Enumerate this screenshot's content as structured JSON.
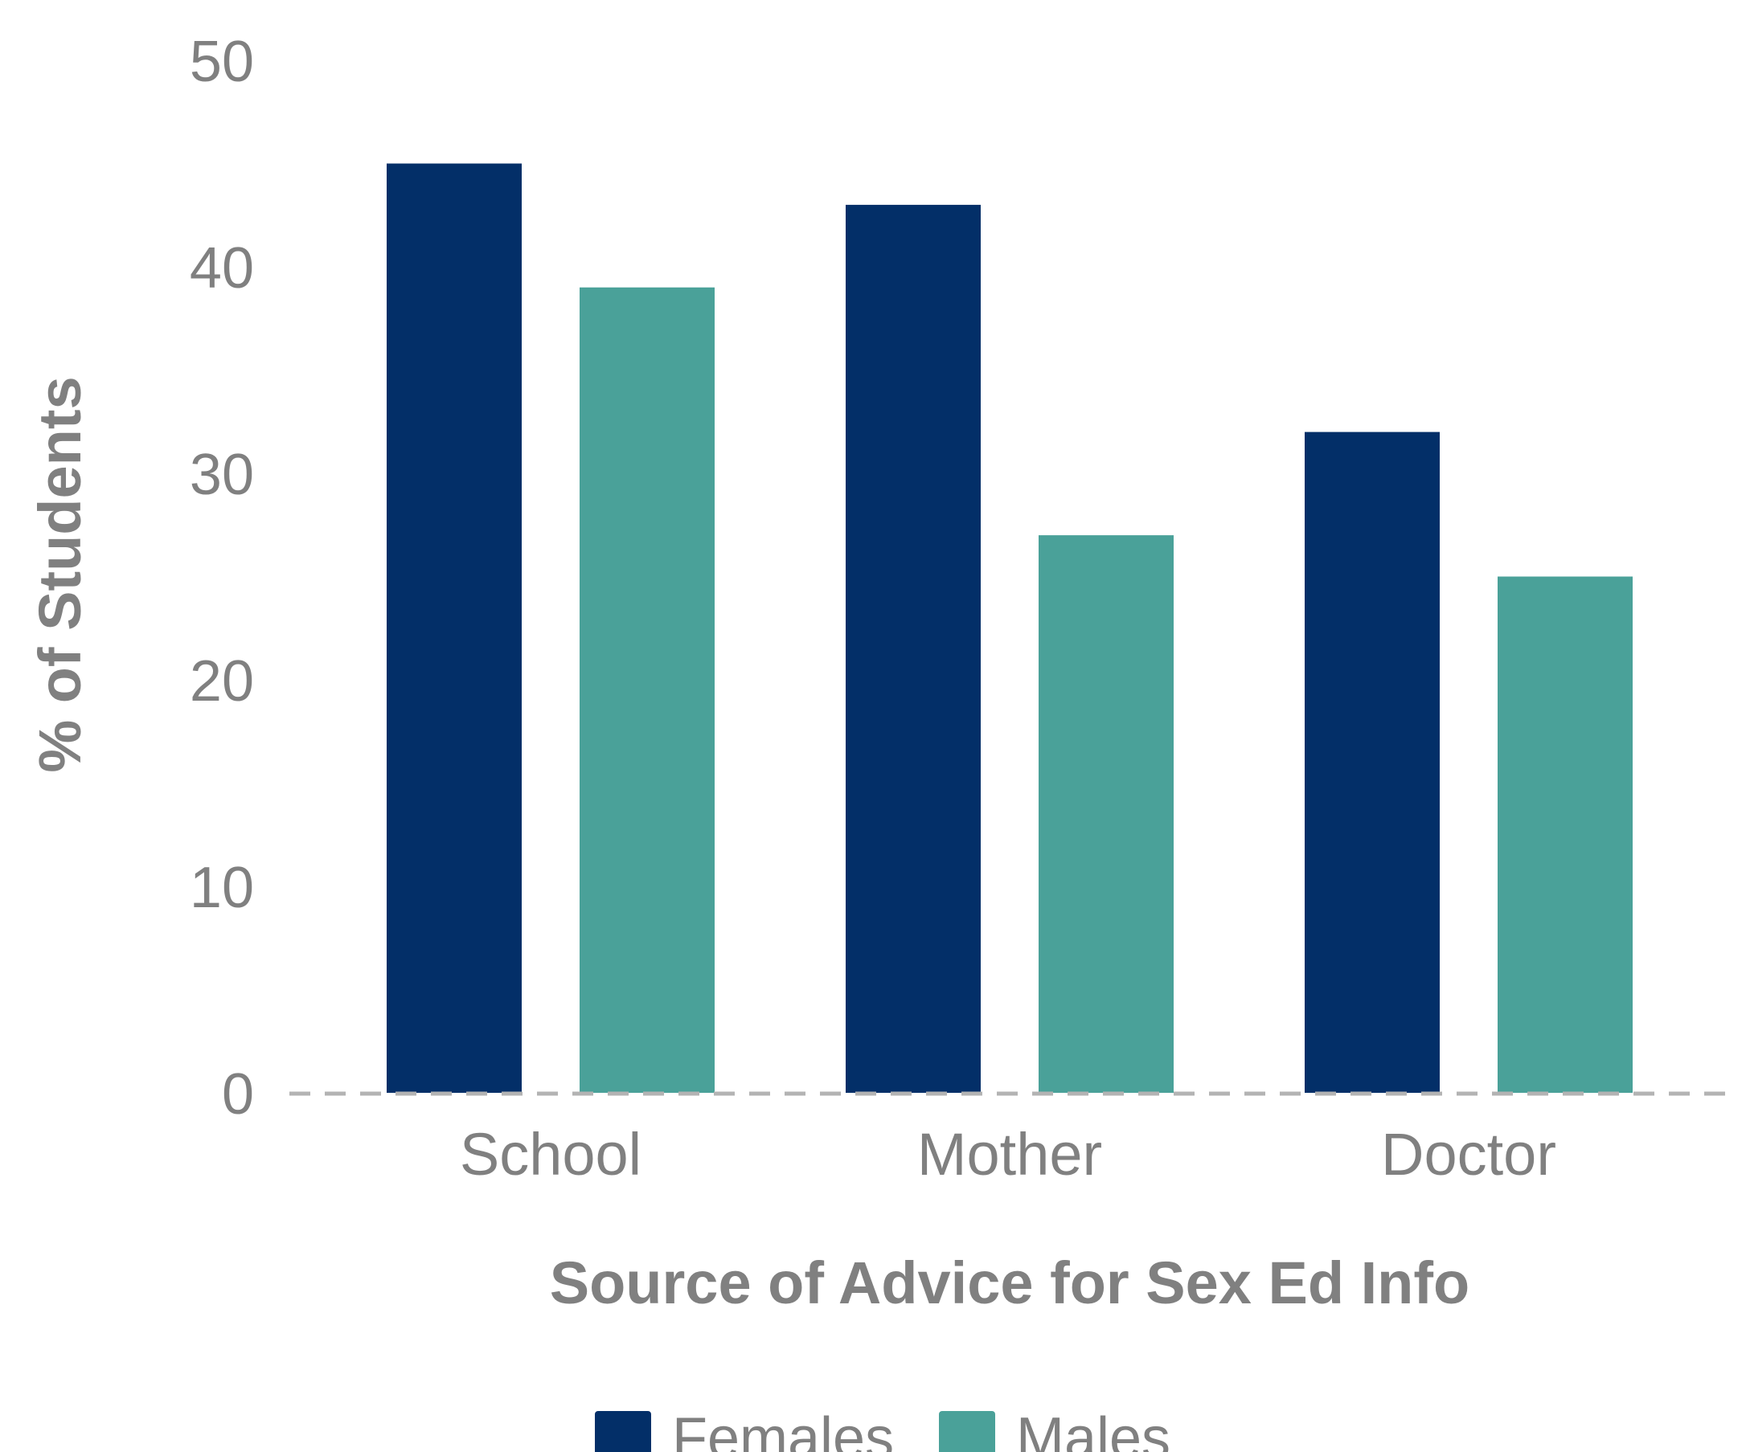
{
  "chart_data": {
    "type": "bar",
    "categories": [
      "School",
      "Mother",
      "Doctor"
    ],
    "series": [
      {
        "name": "Females",
        "values": [
          45,
          43,
          32
        ],
        "color": "#032f68"
      },
      {
        "name": "Males",
        "values": [
          39,
          27,
          25
        ],
        "color": "#4aa199"
      }
    ],
    "title": "",
    "xlabel": "Source of Advice for Sex Ed Info",
    "ylabel": "% of Students",
    "ylim": [
      0,
      50
    ],
    "yticks": [
      "0",
      "10",
      "20",
      "30",
      "40",
      "50"
    ],
    "grid": false,
    "baseline_style": "dashed",
    "legend_position": "bottom"
  }
}
